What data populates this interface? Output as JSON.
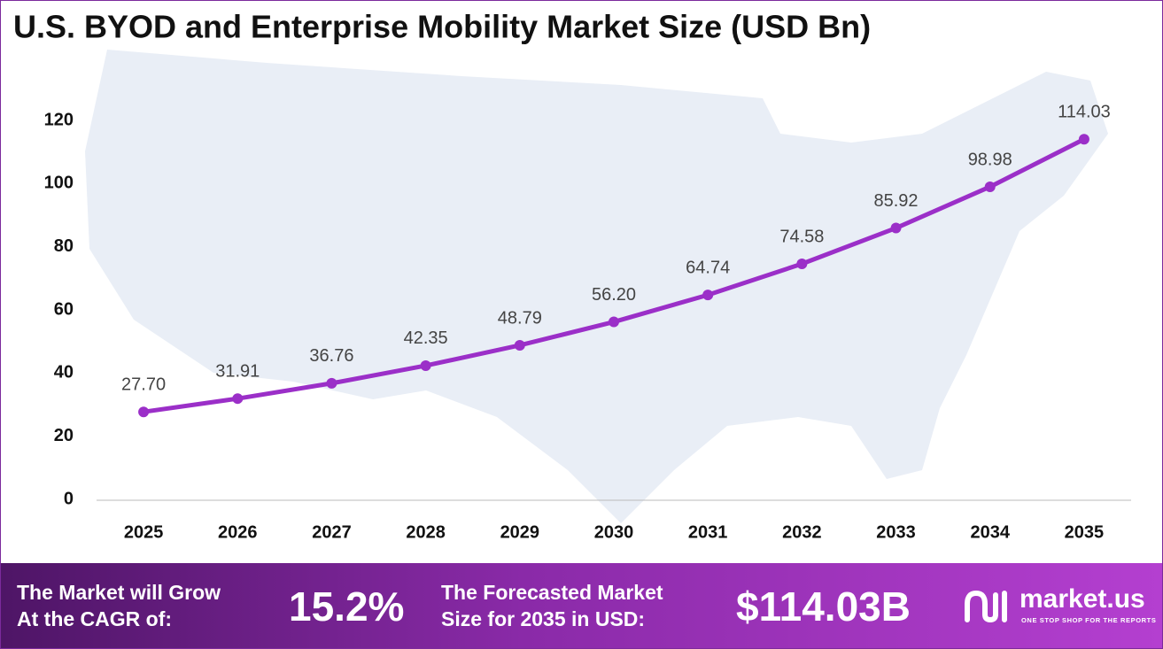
{
  "chart_data": {
    "type": "line",
    "title": "U.S. BYOD and Enterprise Mobility Market Size (USD Bn)",
    "categories": [
      "2025",
      "2026",
      "2027",
      "2028",
      "2029",
      "2030",
      "2031",
      "2032",
      "2033",
      "2034",
      "2035"
    ],
    "values": [
      27.7,
      31.91,
      36.76,
      42.35,
      48.79,
      56.2,
      64.74,
      74.58,
      85.92,
      98.98,
      114.03
    ],
    "value_labels": [
      "27.70",
      "31.91",
      "36.76",
      "42.35",
      "48.79",
      "56.20",
      "64.74",
      "74.58",
      "85.92",
      "98.98",
      "114.03"
    ],
    "color": "#9b2fc8",
    "ylim": [
      0,
      120
    ],
    "yticks": [
      0,
      20,
      40,
      60,
      80,
      100,
      120
    ],
    "grid": false
  },
  "footer": {
    "cagr_text": [
      "The Market will Grow",
      "At the CAGR of:"
    ],
    "cagr_value": "15.2%",
    "forecast_text": [
      "The Forecasted Market",
      "Size for 2035 in USD:"
    ],
    "forecast_value": "$114.03B",
    "logo": "market.us",
    "tagline": "ONE STOP SHOP FOR THE REPORTS"
  }
}
